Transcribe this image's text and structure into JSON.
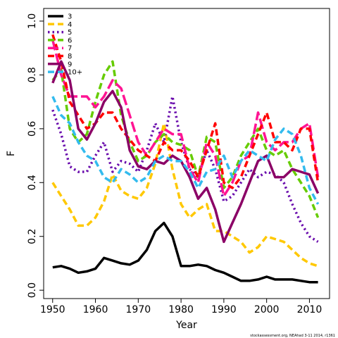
{
  "chart_data": {
    "type": "line",
    "x_label": "Year",
    "y_label": "F",
    "note": "stockassessment.org, NEAhad 3-11 2014, r1361",
    "legend": "top-left",
    "x": [
      1950,
      1952,
      1954,
      1956,
      1958,
      1960,
      1962,
      1964,
      1966,
      1968,
      1970,
      1972,
      1974,
      1976,
      1978,
      1980,
      1982,
      1984,
      1986,
      1988,
      1990,
      1992,
      1994,
      1996,
      1998,
      2000,
      2002,
      2004,
      2006,
      2008,
      2010,
      2012
    ],
    "xlim": [
      1947.9,
      2014.7
    ],
    "xticks": [
      1950,
      1960,
      1970,
      1980,
      1990,
      2000,
      2010
    ],
    "ylim": [
      -0.031,
      1.047
    ],
    "yticks": [
      {
        "value": 0,
        "label": "0.0"
      },
      0.2,
      0.4,
      0.6,
      0.8,
      {
        "value": 1,
        "label": "1.0"
      }
    ],
    "series": [
      {
        "name": "3",
        "color": "#000000",
        "dash": "solid",
        "values": [
          0.085,
          0.09,
          0.08,
          0.065,
          0.07,
          0.08,
          0.12,
          0.11,
          0.1,
          0.095,
          0.11,
          0.15,
          0.22,
          0.25,
          0.2,
          0.09,
          0.09,
          0.095,
          0.09,
          0.075,
          0.065,
          0.05,
          0.035,
          0.035,
          0.04,
          0.05,
          0.04,
          0.04,
          0.04,
          0.035,
          0.03,
          0.03
        ]
      },
      {
        "name": "4",
        "color": "#ffc800",
        "dash": "dashed",
        "values": [
          0.4,
          0.35,
          0.3,
          0.24,
          0.24,
          0.27,
          0.33,
          0.43,
          0.37,
          0.35,
          0.34,
          0.38,
          0.47,
          0.62,
          0.45,
          0.32,
          0.27,
          0.3,
          0.32,
          0.22,
          0.22,
          0.2,
          0.18,
          0.14,
          0.16,
          0.2,
          0.19,
          0.18,
          0.15,
          0.12,
          0.1,
          0.09
        ]
      },
      {
        "name": "5",
        "color": "#6a0dad",
        "dash": "dotted",
        "values": [
          0.67,
          0.58,
          0.46,
          0.44,
          0.44,
          0.5,
          0.55,
          0.44,
          0.48,
          0.47,
          0.44,
          0.52,
          0.62,
          0.55,
          0.72,
          0.55,
          0.45,
          0.42,
          0.52,
          0.45,
          0.33,
          0.35,
          0.4,
          0.45,
          0.42,
          0.44,
          0.43,
          0.4,
          0.32,
          0.25,
          0.2,
          0.18
        ]
      },
      {
        "name": "6",
        "color": "#66cc00",
        "dash": "dashed",
        "values": [
          0.78,
          0.82,
          0.6,
          0.55,
          0.58,
          0.7,
          0.8,
          0.85,
          0.65,
          0.55,
          0.48,
          0.5,
          0.55,
          0.58,
          0.55,
          0.54,
          0.52,
          0.42,
          0.57,
          0.55,
          0.38,
          0.42,
          0.5,
          0.55,
          0.6,
          0.52,
          0.5,
          0.52,
          0.45,
          0.4,
          0.35,
          0.27
        ]
      },
      {
        "name": "7",
        "color": "#ff1493",
        "dash": "longdash",
        "values": [
          0.93,
          0.8,
          0.72,
          0.72,
          0.72,
          0.68,
          0.72,
          0.78,
          0.75,
          0.65,
          0.55,
          0.5,
          0.55,
          0.6,
          0.58,
          0.58,
          0.45,
          0.4,
          0.55,
          0.5,
          0.35,
          0.4,
          0.48,
          0.5,
          0.66,
          0.55,
          0.52,
          0.55,
          0.55,
          0.6,
          0.62,
          0.42
        ]
      },
      {
        "name": "8",
        "color": "#ff0000",
        "dash": "dashed",
        "values": [
          0.95,
          0.85,
          0.7,
          0.65,
          0.6,
          0.62,
          0.66,
          0.66,
          0.6,
          0.56,
          0.52,
          0.5,
          0.48,
          0.55,
          0.52,
          0.52,
          0.48,
          0.42,
          0.52,
          0.62,
          0.4,
          0.38,
          0.42,
          0.5,
          0.58,
          0.66,
          0.55,
          0.55,
          0.52,
          0.6,
          0.6,
          0.4
        ]
      },
      {
        "name": "9",
        "color": "#8b0066",
        "dash": "solid",
        "values": [
          0.77,
          0.85,
          0.78,
          0.6,
          0.56,
          0.62,
          0.7,
          0.74,
          0.68,
          0.52,
          0.46,
          0.45,
          0.48,
          0.47,
          0.5,
          0.48,
          0.42,
          0.34,
          0.38,
          0.3,
          0.18,
          0.25,
          0.32,
          0.4,
          0.48,
          0.5,
          0.42,
          0.42,
          0.45,
          0.44,
          0.43,
          0.36
        ]
      },
      {
        "name": "10+",
        "color": "#33bbee",
        "dash": "dashed",
        "values": [
          0.72,
          0.65,
          0.62,
          0.55,
          0.5,
          0.48,
          0.42,
          0.4,
          0.45,
          0.43,
          0.4,
          0.42,
          0.48,
          0.5,
          0.48,
          0.48,
          0.44,
          0.38,
          0.44,
          0.45,
          0.5,
          0.42,
          0.48,
          0.52,
          0.5,
          0.48,
          0.56,
          0.6,
          0.58,
          0.5,
          0.38,
          0.32
        ]
      }
    ]
  }
}
